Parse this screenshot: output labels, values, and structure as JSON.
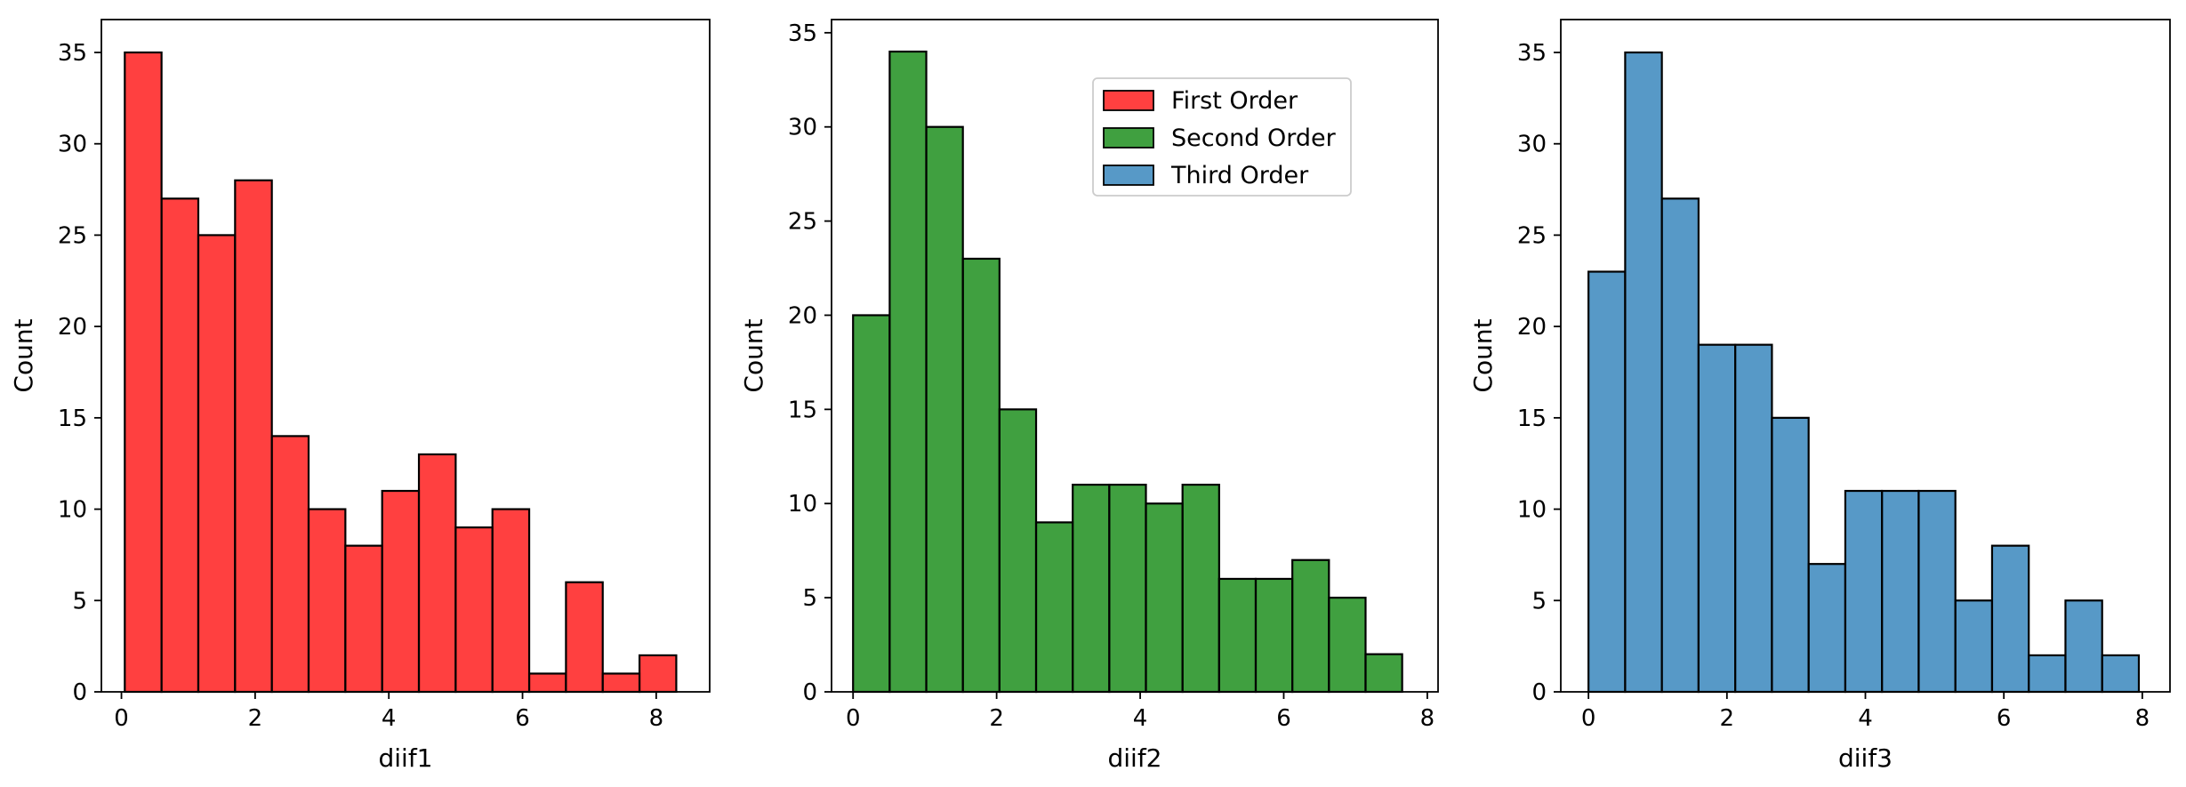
{
  "chart_data": [
    {
      "type": "bar",
      "subtype": "histogram",
      "color": "#ff0000",
      "fill_alpha": 0.75,
      "xlabel": "diif1",
      "ylabel": "Count",
      "xlim": [
        -0.3,
        8.8
      ],
      "ylim": [
        0,
        36.8
      ],
      "xticks": [
        0,
        2,
        4,
        6,
        8
      ],
      "yticks": [
        0,
        5,
        10,
        15,
        20,
        25,
        30,
        35
      ],
      "bin_edges": [
        0.05,
        0.6,
        1.15,
        1.7,
        2.25,
        2.8,
        3.35,
        3.9,
        4.45,
        5.0,
        5.55,
        6.1,
        6.65,
        7.2,
        7.75,
        8.3
      ],
      "values": [
        35,
        27,
        25,
        28,
        14,
        10,
        8,
        11,
        13,
        9,
        10,
        1,
        6,
        1,
        2
      ],
      "grid": false
    },
    {
      "type": "bar",
      "subtype": "histogram",
      "color": "#008000",
      "fill_alpha": 0.75,
      "xlabel": "diif2",
      "ylabel": "Count",
      "xlim": [
        -0.3,
        8.15
      ],
      "ylim": [
        0,
        35.7
      ],
      "xticks": [
        0,
        2,
        4,
        6,
        8
      ],
      "yticks": [
        0,
        5,
        10,
        15,
        20,
        25,
        30,
        35
      ],
      "bin_edges": [
        0.0,
        0.51,
        1.02,
        1.53,
        2.04,
        2.55,
        3.06,
        3.57,
        4.08,
        4.59,
        5.1,
        5.61,
        6.12,
        6.63,
        7.14,
        7.65
      ],
      "values": [
        20,
        34,
        30,
        23,
        15,
        9,
        11,
        11,
        10,
        11,
        6,
        6,
        7,
        5,
        2
      ],
      "grid": false,
      "legend": {
        "placement": "upper center",
        "entries": [
          {
            "label": "First Order",
            "color": "#ff0000"
          },
          {
            "label": "Second Order",
            "color": "#008000"
          },
          {
            "label": "Third Order",
            "color": "#1f77b4"
          }
        ]
      }
    },
    {
      "type": "bar",
      "subtype": "histogram",
      "color": "#1f77b4",
      "fill_alpha": 0.75,
      "xlabel": "diif3",
      "ylabel": "Count",
      "xlim": [
        -0.4,
        8.4
      ],
      "ylim": [
        0,
        36.8
      ],
      "xticks": [
        0,
        2,
        4,
        6,
        8
      ],
      "yticks": [
        0,
        5,
        10,
        15,
        20,
        25,
        30,
        35
      ],
      "bin_edges": [
        0.0,
        0.53,
        1.06,
        1.59,
        2.12,
        2.65,
        3.18,
        3.71,
        4.24,
        4.77,
        5.3,
        5.83,
        6.36,
        6.89,
        7.42,
        7.95
      ],
      "values": [
        23,
        35,
        27,
        19,
        19,
        15,
        7,
        11,
        11,
        11,
        5,
        8,
        2,
        5,
        2
      ],
      "grid": false
    }
  ]
}
